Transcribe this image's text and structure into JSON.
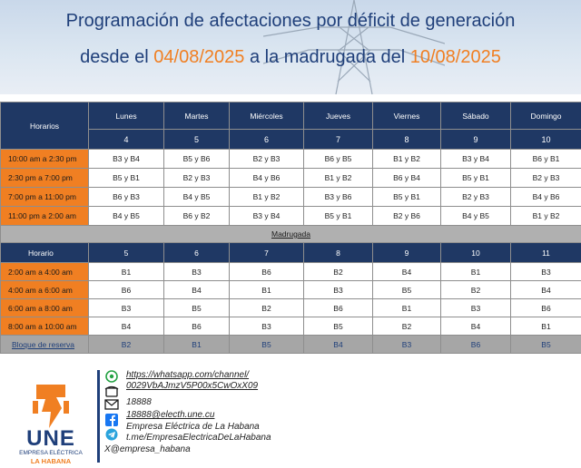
{
  "header": {
    "line1": "Programación de afectaciones por déficit de generación",
    "line2_pre": "desde el ",
    "date_from": "04/08/2025",
    "line2_mid": " a la madrugada del ",
    "date_to": "10/08/2025"
  },
  "table": {
    "horarios_label": "Horarios",
    "days": [
      {
        "name": "Lunes",
        "num": "4"
      },
      {
        "name": "Martes",
        "num": "5"
      },
      {
        "name": "Miércoles",
        "num": "6"
      },
      {
        "name": "Jueves",
        "num": "7"
      },
      {
        "name": "Viernes",
        "num": "8"
      },
      {
        "name": "Sábado",
        "num": "9"
      },
      {
        "name": "Domingo",
        "num": "10"
      }
    ],
    "rows": [
      {
        "time": "10:00 am a 2:30 pm",
        "cells": [
          "B3 y B4",
          "B5 y B6",
          "B2 y B3",
          "B6 y B5",
          "B1 y B2",
          "B3 y B4",
          "B6 y B1"
        ]
      },
      {
        "time": "2:30 pm a 7:00 pm",
        "cells": [
          "B5 y B1",
          "B2 y B3",
          "B4 y B6",
          "B1 y B2",
          "B6 y B4",
          "B5 y B1",
          "B2 y B3"
        ]
      },
      {
        "time": "7:00 pm a 11:00 pm",
        "cells": [
          "B6 y B3",
          "B4 y B5",
          "B1 y B2",
          "B3 y B6",
          "B5 y B1",
          "B2 y B3",
          "B4 y B6"
        ]
      },
      {
        "time": "11:00 pm a 2:00 am",
        "cells": [
          "B4 y B5",
          "B6 y B2",
          "B3 y B4",
          "B5 y B1",
          "B2 y B6",
          "B4 y B5",
          "B1 y B2"
        ]
      }
    ],
    "madrugada_label": "Madrugada",
    "horario_label": "Horario",
    "madrugada_nums": [
      "5",
      "6",
      "7",
      "8",
      "9",
      "10",
      "11"
    ],
    "madrugada_rows": [
      {
        "time": "2:00 am a 4:00 am",
        "cells": [
          "B1",
          "B3",
          "B6",
          "B2",
          "B4",
          "B1",
          "B3"
        ]
      },
      {
        "time": "4:00 am a 6:00 am",
        "cells": [
          "B6",
          "B4",
          "B1",
          "B3",
          "B5",
          "B2",
          "B4"
        ]
      },
      {
        "time": "6:00 am a 8:00 am",
        "cells": [
          "B3",
          "B5",
          "B2",
          "B6",
          "B1",
          "B3",
          "B6"
        ]
      },
      {
        "time": "8:00 am a 10:00 am",
        "cells": [
          "B4",
          "B6",
          "B3",
          "B5",
          "B2",
          "B4",
          "B1"
        ]
      }
    ],
    "reserve_label": "Bloque de reserva",
    "reserve_cells": [
      "B2",
      "B1",
      "B5",
      "B4",
      "B3",
      "B6",
      "B5"
    ]
  },
  "footer": {
    "logo_text": "UNE",
    "logo_sub1": "EMPRESA ELÉCTRICA",
    "logo_sub2": "LA HABANA",
    "contacts": [
      {
        "icon": "whatsapp-icon",
        "text": "https://whatsapp.com/channel/"
      },
      {
        "icon": "",
        "text": "0029VbAJmzV5P00x5CwOxX09"
      },
      {
        "icon": "phone-icon",
        "text": "18888"
      },
      {
        "icon": "email-icon",
        "text": "18888@electh.une.cu"
      },
      {
        "icon": "facebook-icon",
        "text": "Empresa Eléctrica de La Habana"
      },
      {
        "icon": "telegram-icon",
        "text": "t.me/EmpresaElectricaDeLaHabana"
      },
      {
        "icon": "x-icon",
        "text": "X@empresa_habana"
      }
    ]
  },
  "colors": {
    "navy": "#1f3864",
    "orange": "#f07f22",
    "gray": "#b0b0b0"
  }
}
